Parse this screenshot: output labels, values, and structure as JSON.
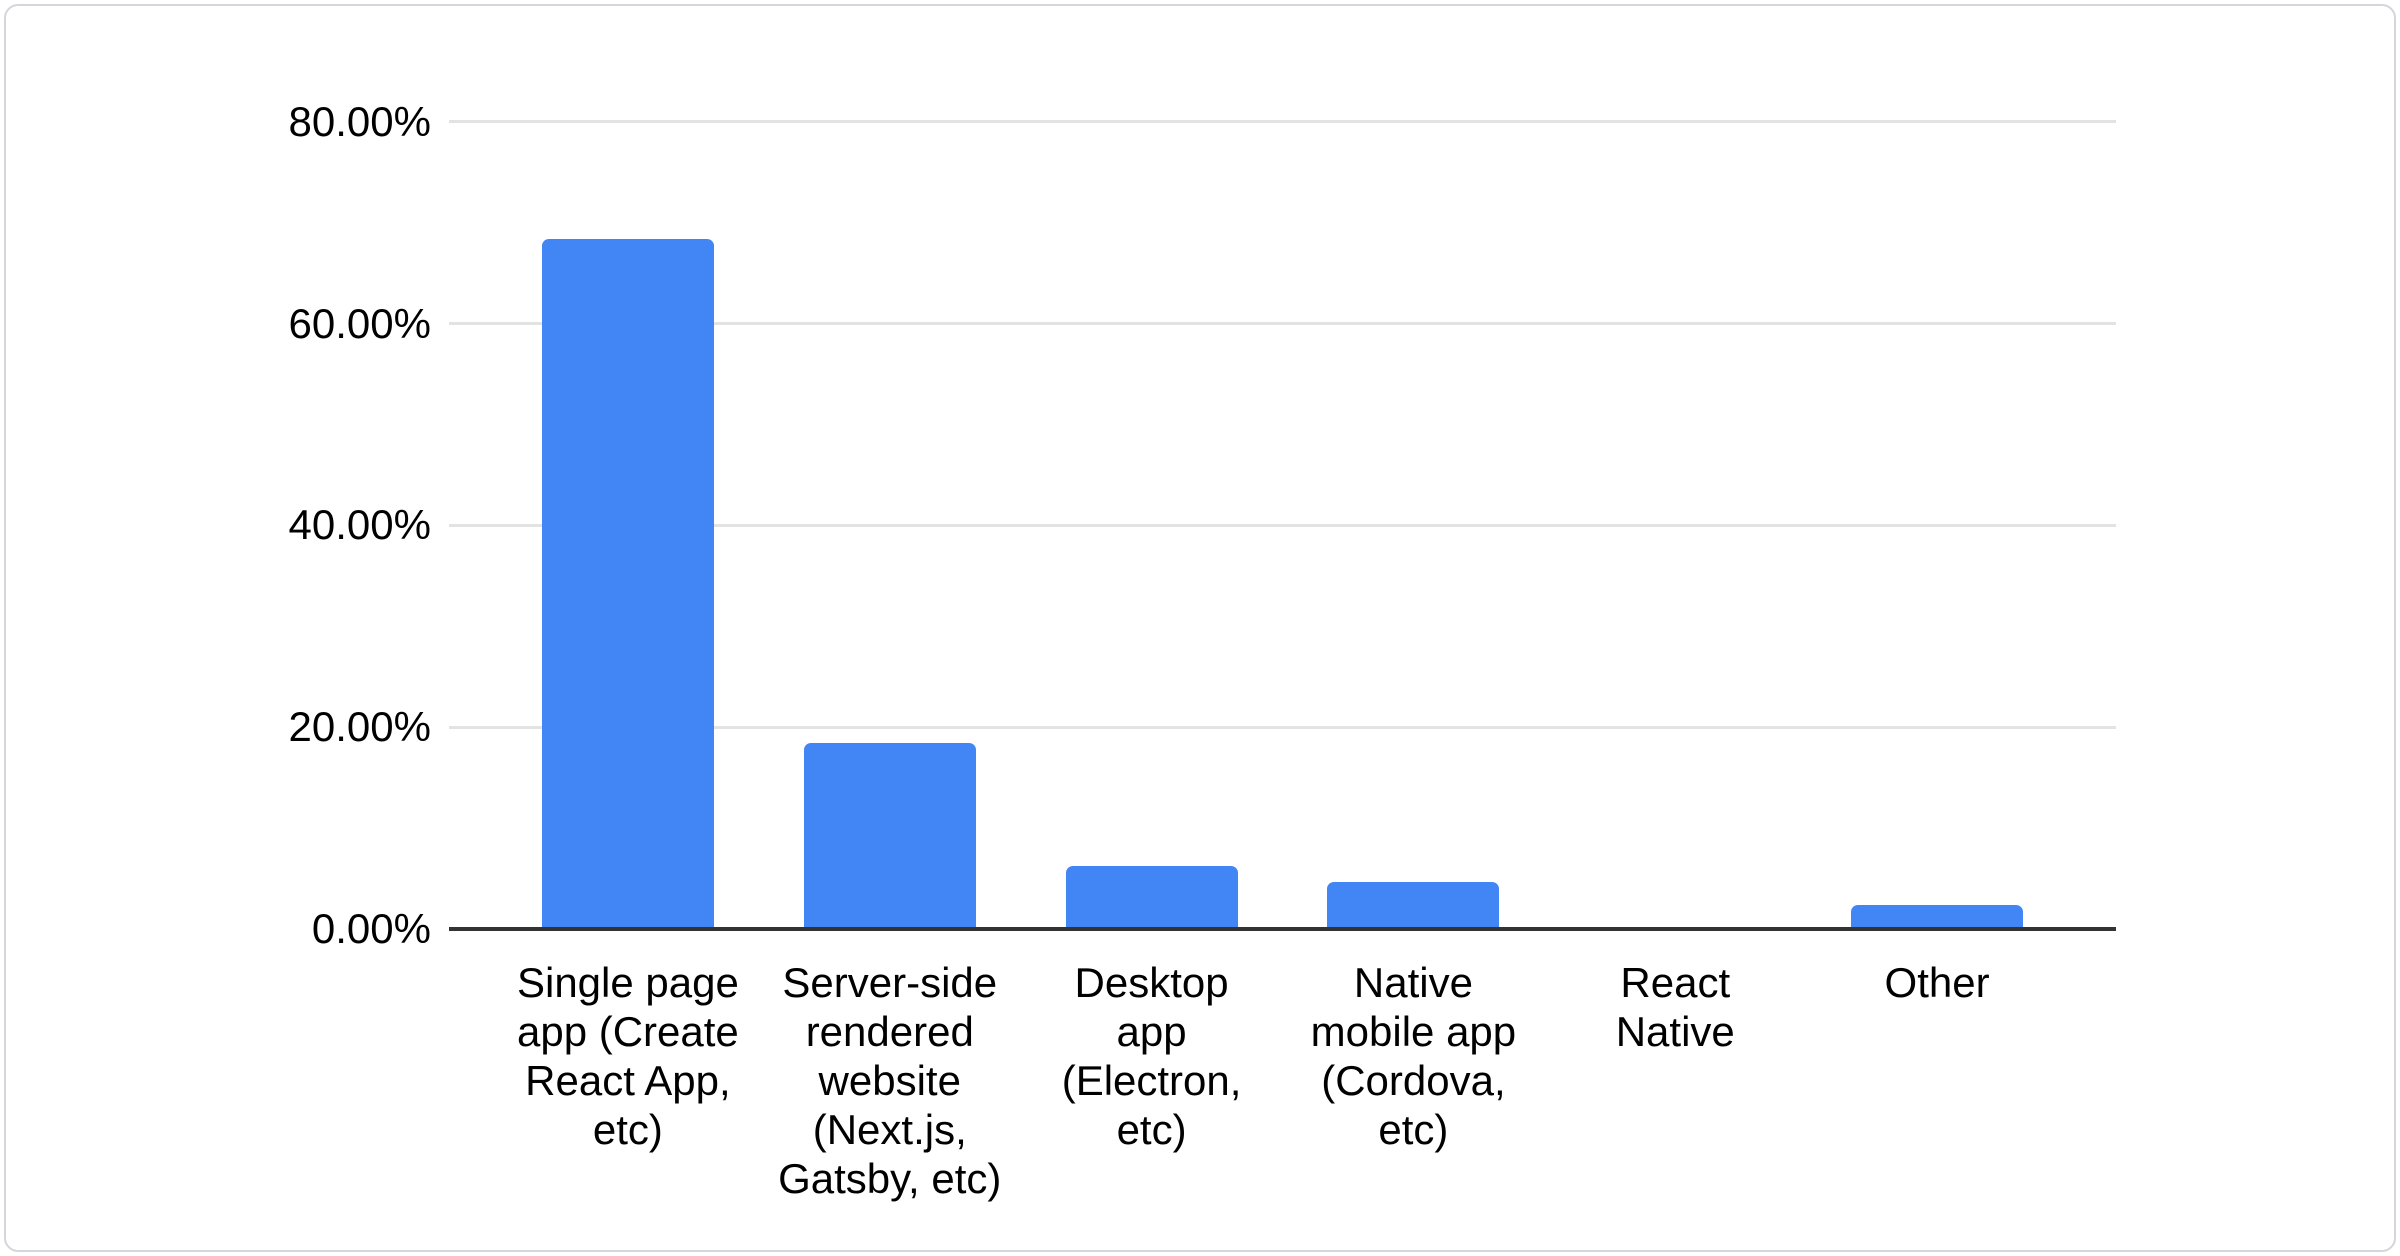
{
  "chart_data": {
    "type": "bar",
    "title": "",
    "xlabel": "",
    "ylabel": "",
    "categories": [
      "Single page app (Create React App, etc)",
      "Server-side rendered website (Next.js, Gatsby, etc)",
      "Desktop app (Electron, etc)",
      "Native mobile app (Cordova, etc)",
      "React Native",
      "Other"
    ],
    "values": [
      68.4,
      18.4,
      6.2,
      4.7,
      0,
      2.4
    ],
    "value_unit": "%",
    "ylim": [
      0,
      80
    ],
    "yticks": [
      {
        "value": 0,
        "label": "0.00%"
      },
      {
        "value": 20,
        "label": "20.00%"
      },
      {
        "value": 40,
        "label": "40.00%"
      },
      {
        "value": 60,
        "label": "60.00%"
      },
      {
        "value": 80,
        "label": "80.00%"
      }
    ],
    "grid": true,
    "legend_position": "none",
    "bar_color": "#4285f4"
  },
  "xaxis_display": {
    "wrapped_labels": [
      "Single page\napp (Create\nReact App,\netc)",
      "Server-side\nrendered\nwebsite\n(Next.js,\nGatsby, etc)",
      "Desktop\napp\n(Electron,\netc)",
      "Native\nmobile app\n(Cordova,\netc)",
      "React\nNative",
      "Other"
    ]
  },
  "colors": {
    "bar": "#4285f4",
    "gridline": "#e3e3e3",
    "axis_line": "#333333",
    "label_text": "#000000",
    "card_background": "#ffffff",
    "card_border": "#d3d6db",
    "page_background": "#ffffff"
  }
}
